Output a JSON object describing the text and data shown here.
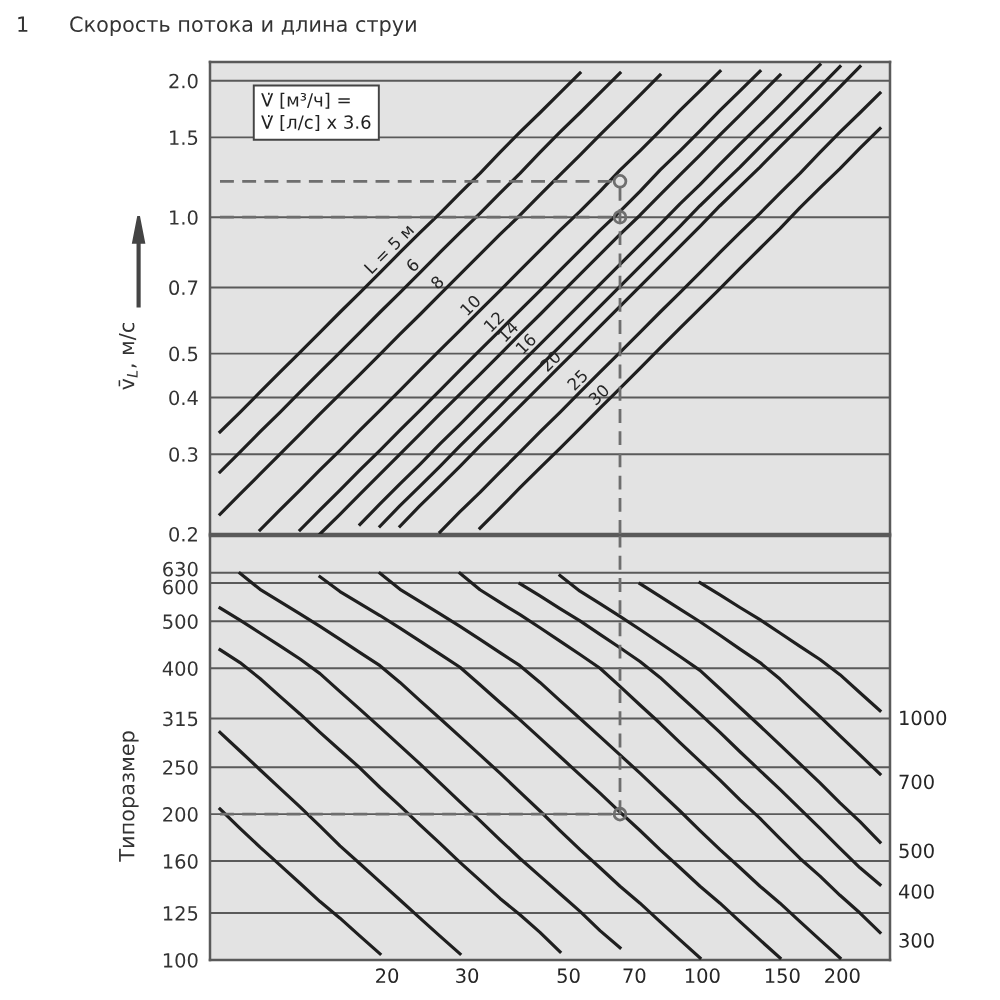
{
  "chart_data": [
    {
      "type": "line",
      "title": "1      Скорость потока и длина струи",
      "ylabel": "v̄$_{L}$, м/с",
      "annotations": [
        "V̇ [м³/ч] =\nV̇ [л/с] x 3.6"
      ],
      "categories": [
        null,
        null,
        null,
        null,
        null,
        null,
        null,
        null,
        null,
        null,
        null,
        null,
        null,
        null,
        null,
        null,
        null,
        null,
        null,
        null,
        null,
        null,
        null,
        null,
        null,
        null,
        null,
        null,
        null,
        null,
        null,
        null,
        null,
        null
      ],
      "log": true,
      "ylim": [
        0.2,
        2.2
      ],
      "yticks": [
        {
          "value": 2,
          "label": "2.0"
        },
        1.5,
        {
          "value": 1,
          "label": "1.0"
        },
        0.7,
        0.5,
        0.4,
        0.3,
        0.2
      ],
      "tick_labels": "y",
      "grid": "y",
      "marker": "none",
      "line_style": "solid",
      "series": [
        {
          "name": "L = 5 м",
          "color": "#1f1f1f",
          "values": [
            0.336,
            0.371,
            0.411,
            0.455,
            0.503,
            0.557,
            0.617,
            0.682,
            0.755,
            0.836,
            0.925,
            1.02,
            1.13,
            1.25,
            1.39,
            1.54,
            1.7,
            1.88,
            2.08,
            null,
            null,
            null,
            null,
            null,
            null,
            null,
            null,
            null,
            null,
            null,
            null,
            null,
            null,
            null
          ]
        },
        {
          "name": "6",
          "color": "#1f1f1f",
          "values": [
            0.274,
            0.303,
            0.336,
            0.371,
            0.411,
            0.455,
            0.503,
            0.557,
            0.617,
            0.682,
            0.755,
            0.836,
            0.925,
            1.02,
            1.13,
            1.25,
            1.39,
            1.54,
            1.7,
            1.88,
            2.08,
            null,
            null,
            null,
            null,
            null,
            null,
            null,
            null,
            null,
            null,
            null,
            null,
            null
          ]
        },
        {
          "name": "8",
          "color": "#1f1f1f",
          "values": [
            0.221,
            0.245,
            0.271,
            0.3,
            0.332,
            0.368,
            0.407,
            0.45,
            0.498,
            0.552,
            0.61,
            0.676,
            0.748,
            0.828,
            0.916,
            1.01,
            1.12,
            1.24,
            1.37,
            1.52,
            1.68,
            1.86,
            2.06,
            null,
            null,
            null,
            null,
            null,
            null,
            null,
            null,
            null,
            null,
            null
          ]
        },
        {
          "name": "10",
          "color": "#1f1f1f",
          "values": [
            null,
            null,
            0.204,
            0.226,
            0.25,
            0.277,
            0.306,
            0.339,
            0.375,
            0.415,
            0.46,
            0.509,
            0.563,
            0.623,
            0.689,
            0.763,
            0.845,
            0.935,
            1.03,
            1.14,
            1.27,
            1.4,
            1.55,
            1.72,
            1.9,
            2.1,
            null,
            null,
            null,
            null,
            null,
            null,
            null,
            null
          ]
        },
        {
          "name": "12",
          "color": "#1f1f1f",
          "values": [
            null,
            null,
            null,
            null,
            0.204,
            0.226,
            0.25,
            0.277,
            0.306,
            0.339,
            0.375,
            0.415,
            0.46,
            0.509,
            0.563,
            0.623,
            0.689,
            0.763,
            0.845,
            0.935,
            1.03,
            1.14,
            1.27,
            1.4,
            1.55,
            1.72,
            1.9,
            2.1,
            null,
            null,
            null,
            null,
            null,
            null
          ]
        },
        {
          "name": "14",
          "color": "#1f1f1f",
          "values": [
            null,
            null,
            null,
            null,
            null,
            0.2,
            0.221,
            0.245,
            0.271,
            0.3,
            0.332,
            0.368,
            0.407,
            0.45,
            0.498,
            0.552,
            0.61,
            0.676,
            0.748,
            0.828,
            0.916,
            1.01,
            1.12,
            1.24,
            1.37,
            1.52,
            1.68,
            1.86,
            2.06,
            null,
            null,
            null,
            null,
            null
          ]
        },
        {
          "name": "16",
          "color": "#1f1f1f",
          "values": [
            null,
            null,
            null,
            null,
            null,
            null,
            null,
            0.21,
            0.233,
            0.258,
            0.285,
            0.316,
            0.349,
            0.387,
            0.428,
            0.474,
            0.524,
            0.58,
            0.642,
            0.711,
            0.787,
            0.871,
            0.964,
            1.07,
            1.18,
            1.31,
            1.45,
            1.6,
            1.77,
            1.96,
            2.17,
            null,
            null,
            null
          ]
        },
        {
          "color": "#1f1f1f",
          "values": [
            null,
            null,
            null,
            null,
            null,
            null,
            null,
            null,
            0.208,
            0.231,
            0.255,
            0.282,
            0.313,
            0.346,
            0.383,
            0.424,
            0.469,
            0.519,
            0.574,
            0.636,
            0.704,
            0.779,
            0.862,
            0.954,
            1.06,
            1.17,
            1.29,
            1.43,
            1.58,
            1.75,
            1.94,
            2.15,
            null,
            null
          ]
        },
        {
          "name": "20",
          "color": "#1f1f1f",
          "values": [
            null,
            null,
            null,
            null,
            null,
            null,
            null,
            null,
            null,
            0.208,
            0.231,
            0.255,
            0.282,
            0.313,
            0.346,
            0.383,
            0.424,
            0.469,
            0.519,
            0.574,
            0.636,
            0.704,
            0.779,
            0.862,
            0.954,
            1.06,
            1.17,
            1.29,
            1.43,
            1.58,
            1.75,
            1.94,
            2.15,
            null
          ]
        },
        {
          "name": "25",
          "color": "#1f1f1f",
          "values": [
            null,
            null,
            null,
            null,
            null,
            null,
            null,
            null,
            null,
            null,
            null,
            0.202,
            0.224,
            0.247,
            0.274,
            0.303,
            0.336,
            0.371,
            0.411,
            0.455,
            0.503,
            0.557,
            0.617,
            0.682,
            0.755,
            0.836,
            0.925,
            1.02,
            1.13,
            1.25,
            1.39,
            1.54,
            1.7,
            1.88
          ]
        },
        {
          "name": "30",
          "color": "#1f1f1f",
          "values": [
            null,
            null,
            null,
            null,
            null,
            null,
            null,
            null,
            null,
            null,
            null,
            null,
            null,
            0.206,
            0.228,
            0.253,
            0.28,
            0.309,
            0.342,
            0.379,
            0.419,
            0.464,
            0.514,
            0.569,
            0.629,
            0.696,
            0.771,
            0.853,
            0.944,
            1.05,
            1.16,
            1.28,
            1.42,
            1.57
          ]
        },
        {
          "type": "line",
          "line_style": "dashed",
          "color": "#6e6e6e",
          "values": [
            1.2,
            1.2,
            1.2,
            1.2,
            1.2,
            1.2,
            1.2,
            1.2,
            1.2,
            1.2,
            1.2,
            1.2,
            1.2,
            1.2,
            1.2,
            1.2,
            1.2,
            1.2,
            1.2,
            1.2,
            1.2,
            null,
            null,
            null,
            null,
            null,
            null,
            null,
            null,
            null,
            null,
            null,
            null,
            null
          ]
        },
        {
          "type": "line",
          "line_style": "dashed",
          "color": "#6e6e6e",
          "values": [
            1.0,
            1.0,
            1.0,
            1.0,
            1.0,
            1.0,
            1.0,
            1.0,
            1.0,
            1.0,
            1.0,
            1.0,
            1.0,
            1.0,
            1.0,
            1.0,
            1.0,
            1.0,
            1.0,
            1.0,
            1.0,
            null,
            null,
            null,
            null,
            null,
            null,
            null,
            null,
            null,
            null,
            null,
            null,
            null
          ]
        },
        {
          "type": "scatter",
          "marker": "circle",
          "line_style": "dashed",
          "color": "#6e6e6e",
          "values": [
            null,
            null,
            null,
            null,
            null,
            null,
            null,
            null,
            null,
            null,
            null,
            null,
            null,
            null,
            null,
            null,
            null,
            null,
            null,
            null,
            1.2,
            null,
            null,
            null,
            null,
            null,
            null,
            null,
            null,
            null,
            null,
            null,
            null,
            null
          ],
          "errors": [
            null,
            null,
            null,
            null,
            null,
            null,
            null,
            null,
            null,
            null,
            null,
            null,
            null,
            null,
            null,
            null,
            null,
            null,
            null,
            null,
            [
              0.2,
              1.2
            ],
            null,
            null,
            null,
            null,
            null,
            null,
            null,
            null,
            null,
            null,
            null,
            null,
            null
          ]
        },
        {
          "type": "scatter",
          "marker": "circle",
          "color": "#6e6e6e",
          "values": [
            null,
            null,
            null,
            null,
            null,
            null,
            null,
            null,
            null,
            null,
            null,
            null,
            null,
            null,
            null,
            null,
            null,
            null,
            null,
            null,
            1.0,
            null,
            null,
            null,
            null,
            null,
            null,
            null,
            null,
            null,
            null,
            null,
            null,
            null
          ]
        }
      ]
    },
    {
      "type": "line",
      "ylabel": "Типоразмер",
      "categories": [
        null,
        null,
        null,
        null,
        null,
        null,
        null,
        null,
        null,
        null,
        null,
        null,
        null,
        null,
        null,
        null,
        null,
        null,
        null,
        null,
        null,
        null,
        null,
        null,
        null,
        null,
        null,
        null,
        null,
        null,
        null,
        null,
        null,
        null
      ],
      "log": true,
      "ylim": [
        100,
        750
      ],
      "yticks": [
        100,
        125,
        160,
        200,
        250,
        315,
        400,
        500,
        600,
        630
      ],
      "tick_labels": "y",
      "grid": "y",
      "marker": "none",
      "line_style": "solid",
      "series": [
        {
          "name": "20",
          "color": "#1f1f1f",
          "values": [
            205,
            187,
            171,
            157,
            144,
            132,
            122,
            112,
            103,
            null,
            null,
            null,
            null,
            null,
            null,
            null,
            null,
            null,
            null,
            null,
            null,
            null,
            null,
            null,
            null,
            null,
            null,
            null,
            null,
            null,
            null,
            null,
            null,
            null
          ]
        },
        {
          "name": "30",
          "color": "#1f1f1f",
          "values": [
            295,
            270,
            247,
            226,
            207,
            189,
            172,
            158,
            145,
            133,
            122,
            112,
            103,
            null,
            null,
            null,
            null,
            null,
            null,
            null,
            null,
            null,
            null,
            null,
            null,
            null,
            null,
            null,
            null,
            null,
            null,
            null,
            null,
            null
          ]
        },
        {
          "name": "50",
          "color": "#1f1f1f",
          "values": [
            437,
            411,
            381,
            350,
            322,
            295,
            271,
            249,
            227,
            208,
            190,
            174,
            159,
            146,
            134,
            124,
            114,
            104,
            null,
            null,
            null,
            null,
            null,
            null,
            null,
            null,
            null,
            null,
            null,
            null,
            null,
            null,
            null,
            null
          ]
        },
        {
          "name": "70",
          "color": "#1f1f1f",
          "values": [
            533,
            503,
            473,
            445,
            418,
            390,
            358,
            329,
            302,
            277,
            254,
            232,
            212,
            194,
            177,
            162,
            149,
            137,
            126,
            115,
            106,
            null,
            null,
            null,
            null,
            null,
            null,
            null,
            null,
            null,
            null,
            null,
            null,
            null
          ]
        },
        {
          "name": "100",
          "color": "#1f1f1f",
          "values": [
            null,
            628,
            582,
            549,
            518,
            488,
            459,
            431,
            405,
            374,
            343,
            315,
            289,
            265,
            243,
            222,
            203,
            185,
            169,
            155,
            142,
            131,
            120,
            110,
            101,
            null,
            null,
            null,
            null,
            null,
            null,
            null,
            null,
            null
          ]
        },
        {
          "name": "150",
          "color": "#1f1f1f",
          "values": [
            null,
            null,
            null,
            null,
            null,
            618,
            576,
            544,
            514,
            484,
            455,
            428,
            402,
            370,
            340,
            313,
            287,
            263,
            241,
            221,
            202,
            185,
            169,
            155,
            142,
            131,
            120,
            110,
            101,
            null,
            null,
            null,
            null,
            null
          ]
        },
        {
          "name": "200",
          "color": "#1f1f1f",
          "values": [
            null,
            null,
            null,
            null,
            null,
            null,
            null,
            null,
            628,
            582,
            549,
            518,
            488,
            459,
            431,
            405,
            374,
            343,
            315,
            289,
            265,
            243,
            222,
            203,
            185,
            169,
            155,
            142,
            131,
            120,
            110,
            101,
            null,
            null
          ]
        },
        {
          "name": "300",
          "color": "#1f1f1f",
          "values": [
            null,
            null,
            null,
            null,
            null,
            null,
            null,
            null,
            null,
            null,
            null,
            null,
            628,
            581,
            547,
            516,
            485,
            455,
            427,
            400,
            367,
            336,
            308,
            281,
            257,
            235,
            214,
            196,
            178,
            162,
            149,
            136,
            125,
            114
          ]
        },
        {
          "name": "400",
          "color": "#1f1f1f",
          "values": [
            null,
            null,
            null,
            null,
            null,
            null,
            null,
            null,
            null,
            null,
            null,
            null,
            null,
            null,
            null,
            598,
            564,
            531,
            501,
            470,
            441,
            413,
            383,
            351,
            322,
            295,
            269,
            246,
            225,
            205,
            187,
            170,
            155,
            143
          ]
        },
        {
          "name": "500",
          "color": "#1f1f1f",
          "values": [
            null,
            null,
            null,
            null,
            null,
            null,
            null,
            null,
            null,
            null,
            null,
            null,
            null,
            null,
            null,
            null,
            null,
            622,
            577,
            544,
            512,
            481,
            451,
            423,
            396,
            363,
            332,
            304,
            278,
            254,
            232,
            211,
            193,
            175
          ]
        },
        {
          "name": "700",
          "color": "#1f1f1f",
          "values": [
            null,
            null,
            null,
            null,
            null,
            null,
            null,
            null,
            null,
            null,
            null,
            null,
            null,
            null,
            null,
            null,
            null,
            null,
            null,
            null,
            null,
            598,
            563,
            530,
            499,
            468,
            438,
            411,
            380,
            347,
            318,
            290,
            265,
            242
          ]
        },
        {
          "name": "1000",
          "color": "#1f1f1f",
          "values": [
            null,
            null,
            null,
            null,
            null,
            null,
            null,
            null,
            null,
            null,
            null,
            null,
            null,
            null,
            null,
            null,
            null,
            null,
            null,
            null,
            null,
            null,
            null,
            null,
            601,
            567,
            534,
            504,
            473,
            444,
            417,
            388,
            356,
            327
          ]
        },
        {
          "type": "line",
          "line_style": "dashed",
          "color": "#6e6e6e",
          "values": [
            200,
            200,
            200,
            200,
            200,
            200,
            200,
            200,
            200,
            200,
            200,
            200,
            200,
            200,
            200,
            200,
            200,
            200,
            200,
            200,
            200,
            null,
            null,
            null,
            null,
            null,
            null,
            null,
            null,
            null,
            null,
            null,
            null,
            null
          ]
        },
        {
          "type": "scatter",
          "marker": "circle",
          "line_style": "dashed",
          "color": "#6e6e6e",
          "values": [
            null,
            null,
            null,
            null,
            null,
            null,
            null,
            null,
            null,
            null,
            null,
            null,
            null,
            null,
            null,
            null,
            null,
            null,
            null,
            null,
            200,
            null,
            null,
            null,
            null,
            null,
            null,
            null,
            null,
            null,
            null,
            null,
            null,
            null
          ],
          "errors": [
            null,
            null,
            null,
            null,
            null,
            null,
            null,
            null,
            null,
            null,
            null,
            null,
            null,
            null,
            null,
            null,
            null,
            null,
            null,
            null,
            [
              200,
              750
            ],
            null,
            null,
            null,
            null,
            null,
            null,
            null,
            null,
            null,
            null,
            null,
            null,
            null
          ]
        }
      ]
    }
  ]
}
